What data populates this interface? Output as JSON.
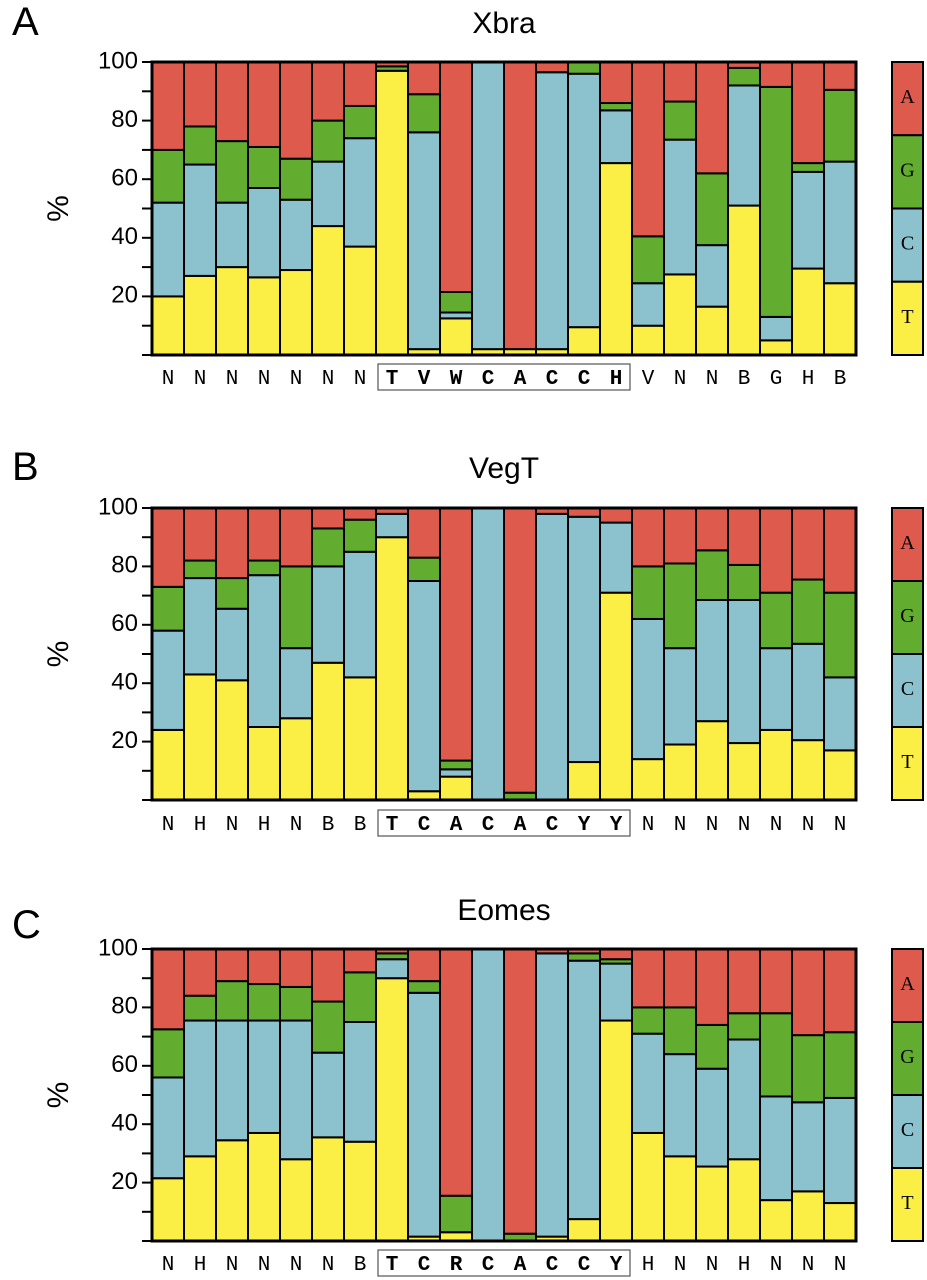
{
  "colors": {
    "A": "#DD5A4C",
    "G": "#62AD2F",
    "C": "#8CC2CE",
    "T": "#FBEE45"
  },
  "chart_data": [
    {
      "type": "bar",
      "stacked": true,
      "panel": "A",
      "title": "Xbra",
      "xlabel": "",
      "ylabel": "%",
      "ylim": [
        0,
        100
      ],
      "yticks": [
        20,
        40,
        60,
        80,
        100
      ],
      "legend": {
        "position": "right",
        "entries": [
          "A",
          "G",
          "C",
          "T"
        ]
      },
      "categories": [
        "N",
        "N",
        "N",
        "N",
        "N",
        "N",
        "N",
        "T",
        "V",
        "W",
        "C",
        "A",
        "C",
        "C",
        "H",
        "V",
        "N",
        "N",
        "B",
        "G",
        "H",
        "B"
      ],
      "core_range": [
        7,
        14
      ],
      "series": [
        {
          "name": "T",
          "values": [
            20,
            27,
            30,
            26.5,
            29,
            44,
            37,
            97,
            2,
            12.5,
            2,
            2,
            2,
            9.5,
            65.5,
            10,
            27.5,
            16.5,
            51,
            5,
            29.5,
            24.5
          ]
        },
        {
          "name": "C",
          "values": [
            32,
            38,
            22,
            30.5,
            24,
            22,
            37,
            0,
            74,
            2,
            98,
            0,
            94.5,
            86.5,
            18,
            14.5,
            46,
            21,
            41,
            8,
            33,
            41.5
          ]
        },
        {
          "name": "G",
          "values": [
            18,
            13,
            21,
            14,
            14,
            14,
            11,
            1.5,
            13,
            7,
            0,
            0,
            0,
            4,
            2.5,
            16,
            13,
            24.5,
            6,
            78.5,
            3,
            24.5
          ]
        },
        {
          "name": "A",
          "values": [
            30,
            22,
            27,
            29,
            33,
            20,
            15,
            1.5,
            11,
            78.5,
            0,
            98,
            3.5,
            0,
            14,
            59.5,
            13.5,
            38,
            2,
            8.5,
            34.5,
            9.5
          ]
        }
      ]
    },
    {
      "type": "bar",
      "stacked": true,
      "panel": "B",
      "title": "VegT",
      "xlabel": "",
      "ylabel": "%",
      "ylim": [
        0,
        100
      ],
      "yticks": [
        20,
        40,
        60,
        80,
        100
      ],
      "legend": {
        "position": "right",
        "entries": [
          "A",
          "G",
          "C",
          "T"
        ]
      },
      "categories": [
        "N",
        "H",
        "N",
        "H",
        "N",
        "B",
        "B",
        "T",
        "C",
        "A",
        "C",
        "A",
        "C",
        "Y",
        "Y",
        "N",
        "N",
        "N",
        "N",
        "N",
        "N",
        "N"
      ],
      "core_range": [
        7,
        14
      ],
      "series": [
        {
          "name": "T",
          "values": [
            24,
            43,
            41,
            25,
            28,
            47,
            42,
            90,
            3,
            8,
            0,
            0,
            0,
            13,
            71,
            14,
            19,
            27,
            19.5,
            24,
            20.5,
            17
          ]
        },
        {
          "name": "C",
          "values": [
            34,
            33,
            24.5,
            52,
            24,
            33,
            43,
            8,
            72,
            2.5,
            100,
            0,
            98,
            84,
            24,
            48,
            33,
            41.5,
            49,
            28,
            33,
            25
          ]
        },
        {
          "name": "G",
          "values": [
            15,
            6,
            10.5,
            5,
            28,
            13,
            11,
            0,
            8,
            3,
            0,
            2.5,
            0,
            0,
            0,
            18,
            29,
            17,
            12,
            19,
            22,
            29
          ]
        },
        {
          "name": "A",
          "values": [
            27,
            18,
            24,
            18,
            20,
            7,
            4,
            2,
            17,
            86.5,
            0,
            97.5,
            2,
            3,
            5,
            20,
            19,
            14.5,
            19.5,
            29,
            24.5,
            29
          ]
        }
      ]
    },
    {
      "type": "bar",
      "stacked": true,
      "panel": "C",
      "title": "Eomes",
      "xlabel": "",
      "ylabel": "%",
      "ylim": [
        0,
        100
      ],
      "yticks": [
        20,
        40,
        60,
        80,
        100
      ],
      "legend": {
        "position": "right",
        "entries": [
          "A",
          "G",
          "C",
          "T"
        ]
      },
      "categories": [
        "N",
        "H",
        "N",
        "N",
        "N",
        "N",
        "B",
        "T",
        "C",
        "R",
        "C",
        "A",
        "C",
        "C",
        "Y",
        "H",
        "N",
        "N",
        "H",
        "N",
        "N",
        "N"
      ],
      "core_range": [
        7,
        14
      ],
      "series": [
        {
          "name": "T",
          "values": [
            21.5,
            29,
            34.5,
            37,
            28,
            35.5,
            34,
            90,
            1.5,
            3,
            0,
            0,
            1.5,
            7.5,
            75.5,
            37,
            29,
            25.5,
            28,
            14,
            17,
            13
          ]
        },
        {
          "name": "C",
          "values": [
            34.5,
            46.5,
            41,
            38.5,
            47.5,
            29,
            41,
            6.5,
            83.5,
            0,
            100,
            0,
            97,
            88.5,
            19.5,
            34,
            35,
            33.5,
            41,
            35.5,
            30.5,
            36
          ]
        },
        {
          "name": "G",
          "values": [
            16.5,
            8.5,
            13.5,
            12.5,
            11.5,
            17.5,
            17,
            2,
            4,
            12.5,
            0,
            2.5,
            0,
            2.5,
            1.5,
            9,
            16,
            15,
            9,
            28.5,
            23,
            22.5
          ]
        },
        {
          "name": "A",
          "values": [
            27.5,
            16,
            11,
            12,
            13,
            18,
            8,
            1.5,
            11,
            84.5,
            0,
            97.5,
            1.5,
            1.5,
            3.5,
            20,
            20,
            26,
            22,
            22,
            29.5,
            28.5
          ]
        }
      ]
    }
  ]
}
